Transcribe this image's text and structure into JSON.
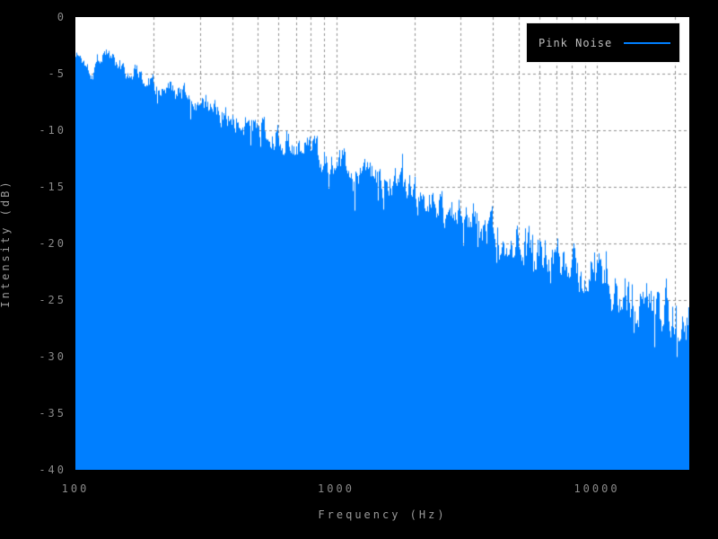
{
  "figure": {
    "background_color": "#000000",
    "plot_background_color": "#ffffff",
    "grid_color": "#909090",
    "tick_text_color": "#8a8a8a",
    "title_text_color": "#9a9a9a",
    "legend_border_color": "#ececec",
    "legend_text_color": "#bdbdbd"
  },
  "chart_data": {
    "type": "area",
    "title": "",
    "xlabel": "Frequency (Hz)",
    "ylabel": "Intensity (dB)",
    "x_scale": "log",
    "y_scale": "linear",
    "xlim": [
      100,
      22050
    ],
    "ylim": [
      -40,
      0
    ],
    "grid": true,
    "grid_style": "dashed",
    "x_ticks": [
      {
        "value": 100,
        "label": "100"
      },
      {
        "value": 1000,
        "label": "1000"
      },
      {
        "value": 10000,
        "label": "10000"
      }
    ],
    "x_minor_gridlines": [
      200,
      300,
      400,
      500,
      600,
      700,
      800,
      900,
      2000,
      3000,
      4000,
      5000,
      6000,
      7000,
      8000,
      9000,
      20000
    ],
    "y_ticks": [
      {
        "value": 0,
        "label": "0"
      },
      {
        "value": -5,
        "label": "-5"
      },
      {
        "value": -10,
        "label": "-10"
      },
      {
        "value": -15,
        "label": "-15"
      },
      {
        "value": -20,
        "label": "-20"
      },
      {
        "value": -25,
        "label": "-25"
      },
      {
        "value": -30,
        "label": "-30"
      },
      {
        "value": -35,
        "label": "-35"
      },
      {
        "value": -40,
        "label": "-40"
      }
    ],
    "legend": {
      "position": "top-right",
      "entries": [
        {
          "label": "Pink Noise",
          "color": "#007fff",
          "marker": "line"
        }
      ]
    },
    "series": [
      {
        "name": "Pink Noise",
        "color": "#007fff",
        "fill": true,
        "slope_db_per_decade": -10.3,
        "noise_jitter_db": 1.5,
        "points": [
          [
            100,
            -3.2
          ],
          [
            108,
            -4.0
          ],
          [
            115,
            -4.7
          ],
          [
            122,
            -3.6
          ],
          [
            130,
            -3.0
          ],
          [
            140,
            -3.7
          ],
          [
            150,
            -4.3
          ],
          [
            160,
            -4.9
          ],
          [
            175,
            -4.7
          ],
          [
            190,
            -5.5
          ],
          [
            200,
            -5.8
          ],
          [
            225,
            -6.3
          ],
          [
            250,
            -6.9
          ],
          [
            275,
            -7.2
          ],
          [
            300,
            -7.6
          ],
          [
            350,
            -8.3
          ],
          [
            400,
            -8.9
          ],
          [
            450,
            -9.4
          ],
          [
            500,
            -9.9
          ],
          [
            600,
            -10.7
          ],
          [
            700,
            -11.4
          ],
          [
            800,
            -11.9
          ],
          [
            900,
            -12.4
          ],
          [
            1000,
            -12.8
          ],
          [
            1200,
            -13.6
          ],
          [
            1400,
            -14.3
          ],
          [
            1700,
            -15.1
          ],
          [
            2000,
            -15.9
          ],
          [
            2500,
            -16.9
          ],
          [
            3000,
            -17.7
          ],
          [
            3500,
            -18.4
          ],
          [
            4000,
            -19.0
          ],
          [
            5000,
            -20.0
          ],
          [
            6000,
            -20.8
          ],
          [
            7000,
            -21.5
          ],
          [
            8000,
            -22.1
          ],
          [
            9000,
            -22.6
          ],
          [
            10000,
            -23.1
          ],
          [
            12000,
            -23.9
          ],
          [
            14000,
            -24.6
          ],
          [
            16000,
            -25.2
          ],
          [
            18000,
            -25.7
          ],
          [
            20000,
            -26.2
          ],
          [
            22050,
            -26.6
          ]
        ]
      }
    ]
  }
}
